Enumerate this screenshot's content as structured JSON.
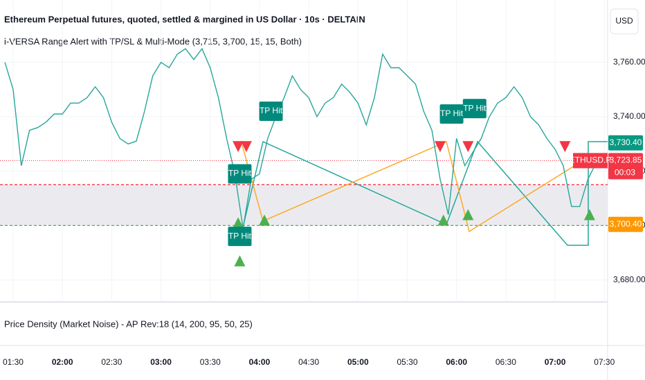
{
  "header": {
    "title": "Ethereum Perpetual futures, quoted, settled & margined in US Dollar · 10s · DELTAIN",
    "indicator": "i-VERSA Range Alert with TP/SL & Multi-Mode (3,715, 3,700, 15, 15, Both)",
    "currency": "USD"
  },
  "chart": {
    "ylim": [
      3671.9,
      3782.9
    ],
    "yticks": [
      {
        "value": 3680,
        "label": "3,680.00"
      },
      {
        "value": 3700,
        "label": "3,700.00"
      },
      {
        "value": 3720,
        "label": "3,720.00"
      },
      {
        "value": 3740,
        "label": "3,740.00"
      },
      {
        "value": 3760,
        "label": "3,760.00"
      }
    ],
    "xlim": [
      "01:22",
      "07:32"
    ],
    "xticks": [
      "01:30",
      "02:00",
      "02:30",
      "03:00",
      "03:30",
      "04:00",
      "04:30",
      "05:00",
      "05:30",
      "06:00",
      "06:30",
      "07:00",
      "07:30"
    ],
    "price": {
      "color": "#26a69a",
      "x": [
        "01:25",
        "01:30",
        "01:35",
        "01:40",
        "01:45",
        "01:50",
        "01:55",
        "02:00",
        "02:05",
        "02:10",
        "02:15",
        "02:20",
        "02:25",
        "02:30",
        "02:35",
        "02:40",
        "02:45",
        "02:50",
        "02:55",
        "03:00",
        "03:05",
        "03:10",
        "03:15",
        "03:20",
        "03:25",
        "03:30",
        "03:35",
        "03:40",
        "03:45",
        "03:50",
        "03:55",
        "04:00",
        "04:05",
        "04:10",
        "04:15",
        "04:20",
        "04:25",
        "04:30",
        "04:35",
        "04:40",
        "04:45",
        "04:50",
        "04:55",
        "05:00",
        "05:05",
        "05:10",
        "05:15",
        "05:20",
        "05:25",
        "05:30",
        "05:35",
        "05:40",
        "05:45",
        "05:50",
        "05:55",
        "06:00",
        "06:05",
        "06:10",
        "06:15",
        "06:20",
        "06:25",
        "06:30",
        "06:35",
        "06:40",
        "06:45",
        "06:50",
        "06:55",
        "07:00",
        "07:05",
        "07:10",
        "07:15",
        "07:20",
        "07:25"
      ],
      "values": [
        3760,
        3750,
        3722,
        3735,
        3736,
        3738,
        3741,
        3741,
        3745,
        3745,
        3747,
        3751,
        3747,
        3738,
        3732,
        3730,
        3731,
        3742,
        3755,
        3760,
        3758,
        3763,
        3765,
        3761,
        3765,
        3758,
        3747,
        3732,
        3719,
        3699,
        3717,
        3719,
        3732,
        3740,
        3747,
        3755,
        3750,
        3747,
        3740,
        3745,
        3747,
        3752,
        3749,
        3745,
        3737,
        3747,
        3763,
        3758,
        3758,
        3755,
        3752,
        3742,
        3735,
        3717,
        3704,
        3732,
        3722,
        3727,
        3732,
        3740,
        3745,
        3747,
        3751,
        3747,
        3740,
        3737,
        3732,
        3728,
        3722,
        3707,
        3707,
        3717,
        3723
      ]
    },
    "range": {
      "upper": 3715,
      "lower": 3700,
      "upper_color": "#f23645",
      "lower_color": "#4caf50"
    },
    "last_price_line": 3723.85,
    "price_tags": [
      {
        "value": 3730.4,
        "label": "3,730.40",
        "color": "#089981"
      },
      {
        "value": 3723.85,
        "label": "3,723.85",
        "color": "#f23645",
        "symbol": "ETHUSD.P",
        "countdown": "00:03"
      },
      {
        "value": 3700.4,
        "label": "3,700.40",
        "color": "#ff9800"
      }
    ],
    "tp_hits": [
      {
        "label": "TP Hit",
        "x": "04:07",
        "y": 3742
      },
      {
        "label": "TP Hit",
        "x": "03:48",
        "y": 3719
      },
      {
        "label": "TP Hit",
        "x": "03:48",
        "y": 3696
      },
      {
        "label": "TP Hit",
        "x": "05:57",
        "y": 3741
      },
      {
        "label": "TP Hit",
        "x": "06:11",
        "y": 3743
      }
    ],
    "sell_signals": {
      "color": "#f23645",
      "x": [
        "03:47",
        "03:52",
        "05:50",
        "06:07",
        "07:06"
      ],
      "y": [
        3729,
        3729,
        3729,
        3729,
        3729
      ]
    },
    "buy_signals": {
      "color": "#4caf50",
      "x": [
        "03:47",
        "04:03",
        "05:52",
        "06:07",
        "07:21",
        "03:48"
      ],
      "y": [
        3701,
        3702,
        3702,
        3704,
        3704,
        3687
      ]
    }
  },
  "pane2": {
    "title": "Price Density (Market Noise) - AP Rev:18 (14, 200, 95, 50, 25)"
  }
}
